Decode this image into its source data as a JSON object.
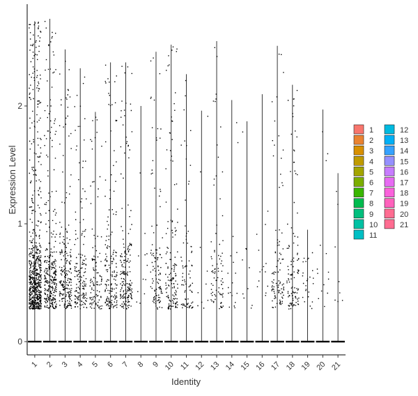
{
  "chart_data": {
    "type": "violin",
    "xlabel": "Identity",
    "ylabel": "Expression Level",
    "categories": [
      "1",
      "2",
      "3",
      "4",
      "5",
      "6",
      "7",
      "8",
      "9",
      "10",
      "11",
      "12",
      "13",
      "14",
      "15",
      "16",
      "17",
      "18",
      "19",
      "20",
      "21"
    ],
    "ylim": [
      -0.12,
      2.85
    ],
    "yticks": [
      0,
      1,
      2
    ],
    "grid": false,
    "legend_position": "right",
    "legend_columns": 2,
    "series": [
      {
        "name": "1",
        "color": "#F8766D",
        "max": 2.72,
        "points": 700
      },
      {
        "name": "2",
        "color": "#EA8331",
        "max": 2.74,
        "points": 320
      },
      {
        "name": "3",
        "color": "#D89000",
        "max": 2.48,
        "points": 220
      },
      {
        "name": "4",
        "color": "#C09B00",
        "max": 2.32,
        "points": 160
      },
      {
        "name": "5",
        "color": "#A3A500",
        "max": 1.95,
        "points": 110
      },
      {
        "name": "6",
        "color": "#7CAE00",
        "max": 2.37,
        "points": 170
      },
      {
        "name": "7",
        "color": "#39B600",
        "max": 2.37,
        "points": 190
      },
      {
        "name": "8",
        "color": "#00BB4E",
        "max": 2.0,
        "points": 12
      },
      {
        "name": "9",
        "color": "#00BF7D",
        "max": 2.46,
        "points": 110
      },
      {
        "name": "10",
        "color": "#00C1A3",
        "max": 2.52,
        "points": 140
      },
      {
        "name": "11",
        "color": "#00BFC4",
        "max": 2.27,
        "points": 80
      },
      {
        "name": "12",
        "color": "#00BAE0",
        "max": 1.96,
        "points": 10
      },
      {
        "name": "13",
        "color": "#00B0F6",
        "max": 2.55,
        "points": 85
      },
      {
        "name": "14",
        "color": "#35A2FF",
        "max": 2.05,
        "points": 18
      },
      {
        "name": "15",
        "color": "#9590FF",
        "max": 1.87,
        "points": 10
      },
      {
        "name": "16",
        "color": "#C77CFF",
        "max": 2.1,
        "points": 14
      },
      {
        "name": "17",
        "color": "#E76BF3",
        "max": 2.51,
        "points": 95
      },
      {
        "name": "18",
        "color": "#FA62DB",
        "max": 2.18,
        "points": 110
      },
      {
        "name": "19",
        "color": "#FF62BC",
        "max": 0.95,
        "points": 25
      },
      {
        "name": "20",
        "color": "#FF6C91",
        "max": 1.97,
        "points": 14
      },
      {
        "name": "21",
        "color": "#FF6C91",
        "max": 1.43,
        "points": 8
      }
    ]
  }
}
